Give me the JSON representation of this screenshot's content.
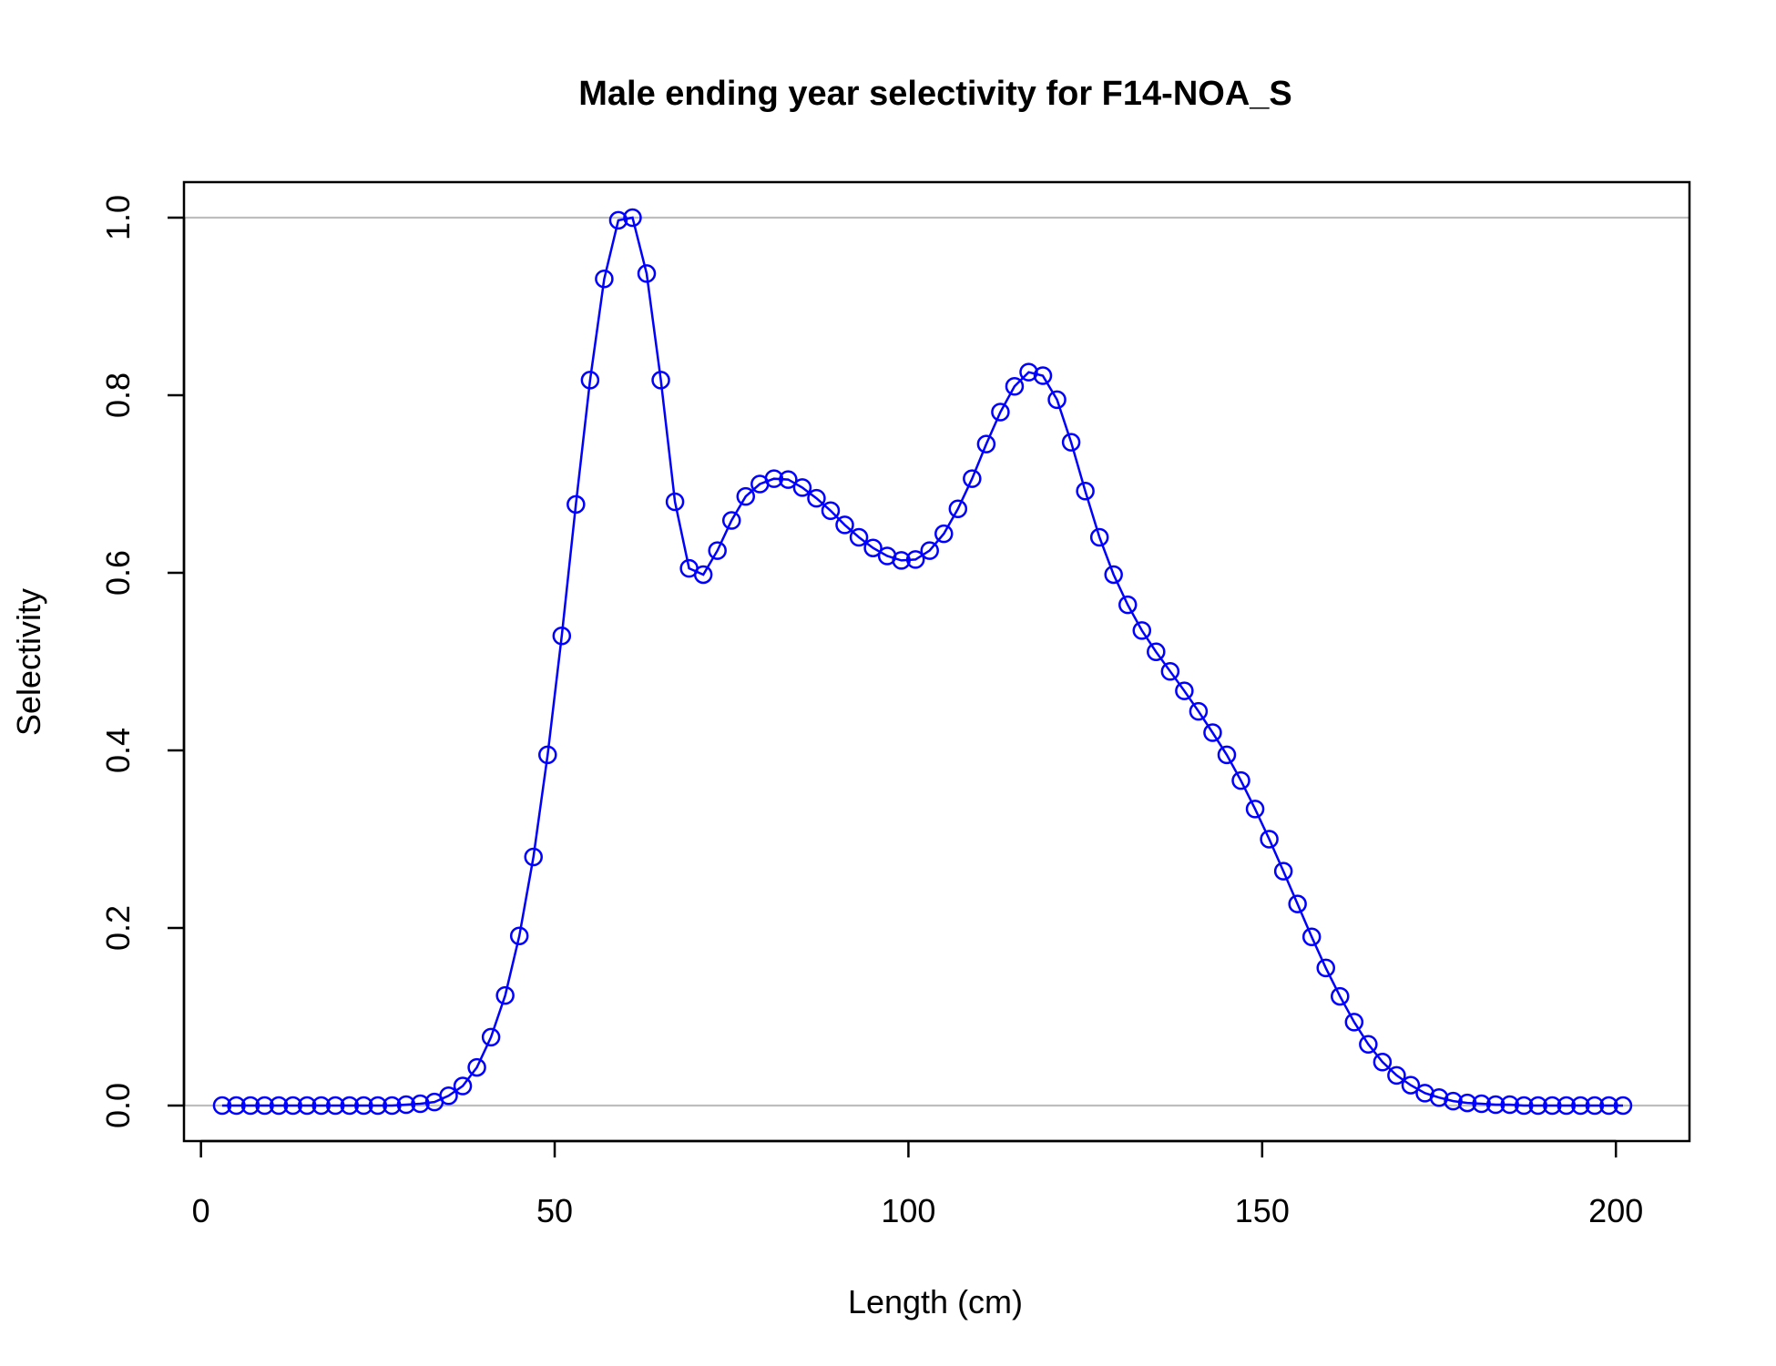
{
  "chart_data": {
    "type": "line",
    "title": "Male ending year selectivity for F14-NOA_S",
    "xlabel": "Length (cm)",
    "ylabel": "Selectivity",
    "xlim": [
      -2.4,
      210.4
    ],
    "ylim": [
      -0.04,
      1.04
    ],
    "xticks": [
      0,
      50,
      100,
      150,
      200
    ],
    "xtick_labels": [
      "0",
      "50",
      "100",
      "150",
      "200"
    ],
    "yticks": [
      0.0,
      0.2,
      0.4,
      0.6,
      0.8,
      1.0
    ],
    "ytick_labels": [
      "0.0",
      "0.2",
      "0.4",
      "0.6",
      "0.8",
      "1.0"
    ],
    "reference_lines": [
      0,
      1
    ],
    "grid": false,
    "legend": "none",
    "colors": {
      "series": "#0000ff",
      "reference": "#bebebe",
      "axes": "#000000"
    },
    "series": [
      {
        "markers": "open-circle",
        "x": [
          3,
          5,
          7,
          9,
          11,
          13,
          15,
          17,
          19,
          21,
          23,
          25,
          27,
          29,
          31,
          33,
          35,
          37,
          39,
          41,
          43,
          45,
          47,
          49,
          51,
          53,
          55,
          57,
          59,
          61,
          63,
          65,
          67,
          69,
          71,
          73,
          75,
          77,
          79,
          81,
          83,
          85,
          87,
          89,
          91,
          93,
          95,
          97,
          99,
          101,
          103,
          105,
          107,
          109,
          111,
          113,
          115,
          117,
          119,
          121,
          123,
          125,
          127,
          129,
          131,
          133,
          135,
          137,
          139,
          141,
          143,
          145,
          147,
          149,
          151,
          153,
          155,
          157,
          159,
          161,
          163,
          165,
          167,
          169,
          171,
          173,
          175,
          177,
          179,
          181,
          183,
          185,
          187,
          189,
          191,
          193,
          195,
          197,
          199,
          201
        ],
        "y": [
          0.0,
          0.0,
          0.0,
          0.0,
          0.0,
          0.0,
          0.0,
          0.0,
          0.0,
          0.0,
          0.0,
          0.0,
          0.0,
          0.001,
          0.002,
          0.004,
          0.011,
          0.022,
          0.043,
          0.077,
          0.124,
          0.191,
          0.28,
          0.395,
          0.529,
          0.677,
          0.817,
          0.931,
          0.997,
          1.0,
          0.937,
          0.817,
          0.68,
          0.605,
          0.598,
          0.625,
          0.659,
          0.686,
          0.7,
          0.706,
          0.705,
          0.696,
          0.684,
          0.67,
          0.654,
          0.64,
          0.628,
          0.619,
          0.614,
          0.615,
          0.625,
          0.644,
          0.672,
          0.706,
          0.745,
          0.781,
          0.81,
          0.826,
          0.822,
          0.795,
          0.747,
          0.692,
          0.64,
          0.598,
          0.564,
          0.535,
          0.511,
          0.489,
          0.467,
          0.444,
          0.42,
          0.395,
          0.366,
          0.334,
          0.3,
          0.264,
          0.227,
          0.19,
          0.155,
          0.123,
          0.094,
          0.069,
          0.049,
          0.034,
          0.023,
          0.014,
          0.009,
          0.005,
          0.003,
          0.002,
          0.001,
          0.001,
          0.0,
          0.0,
          0.0,
          0.0,
          0.0,
          0.0,
          0.0,
          0.0
        ]
      }
    ]
  }
}
